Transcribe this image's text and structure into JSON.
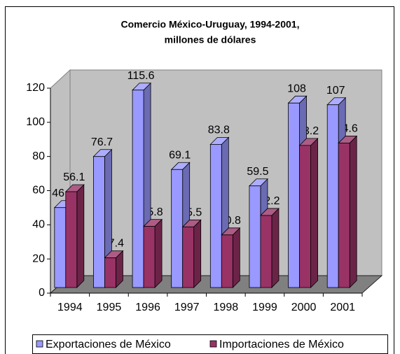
{
  "chart_data": {
    "type": "bar3d",
    "title": "Comercio México-Uruguay, 1994-2001,",
    "subtitle": "millones de dólares",
    "categories": [
      "1994",
      "1995",
      "1996",
      "1997",
      "1998",
      "1999",
      "2000",
      "2001"
    ],
    "series": [
      {
        "name": "Exportaciones de México",
        "color": "#9999ff",
        "values": [
          46.8,
          76.7,
          115.6,
          69.1,
          83.8,
          59.5,
          108,
          107
        ]
      },
      {
        "name": "Importaciones de México",
        "color": "#993366",
        "values": [
          56.1,
          17.4,
          35.8,
          35.5,
          30.8,
          42.2,
          83.2,
          84.6
        ]
      }
    ],
    "ylim": [
      0,
      120
    ],
    "yticks": [
      0,
      20,
      40,
      60,
      80,
      100,
      120
    ],
    "legend": "bottom"
  }
}
